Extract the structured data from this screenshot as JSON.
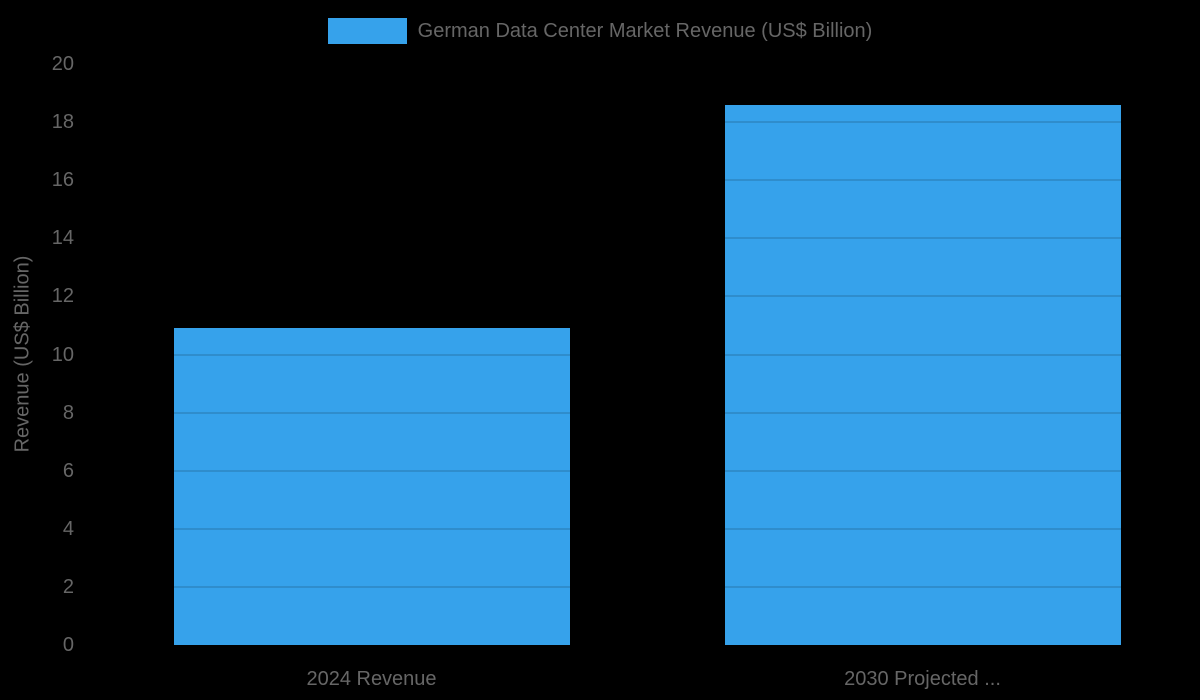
{
  "background_color": "#000000",
  "text_color": "#666666",
  "chart_data": {
    "type": "bar",
    "title": "",
    "legend": {
      "label": "German Data Center Market Revenue (US$ Billion)",
      "position": "top",
      "swatch_color": "#36A2EB"
    },
    "categories": [
      "2024 Revenue",
      "2030 Projected ..."
    ],
    "series": [
      {
        "name": "German Data Center Market Revenue (US$ Billion)",
        "values": [
          10.9,
          18.6
        ]
      }
    ],
    "xlabel": "",
    "ylabel": "Revenue (US$ Billion)",
    "ylim": [
      0,
      20
    ],
    "yticks": [
      0,
      2,
      4,
      6,
      8,
      10,
      12,
      14,
      16,
      18,
      20
    ],
    "grid": true,
    "bar_color": "#36A2EB",
    "gridline_color": "rgba(0, 0, 0, 0.13)"
  }
}
